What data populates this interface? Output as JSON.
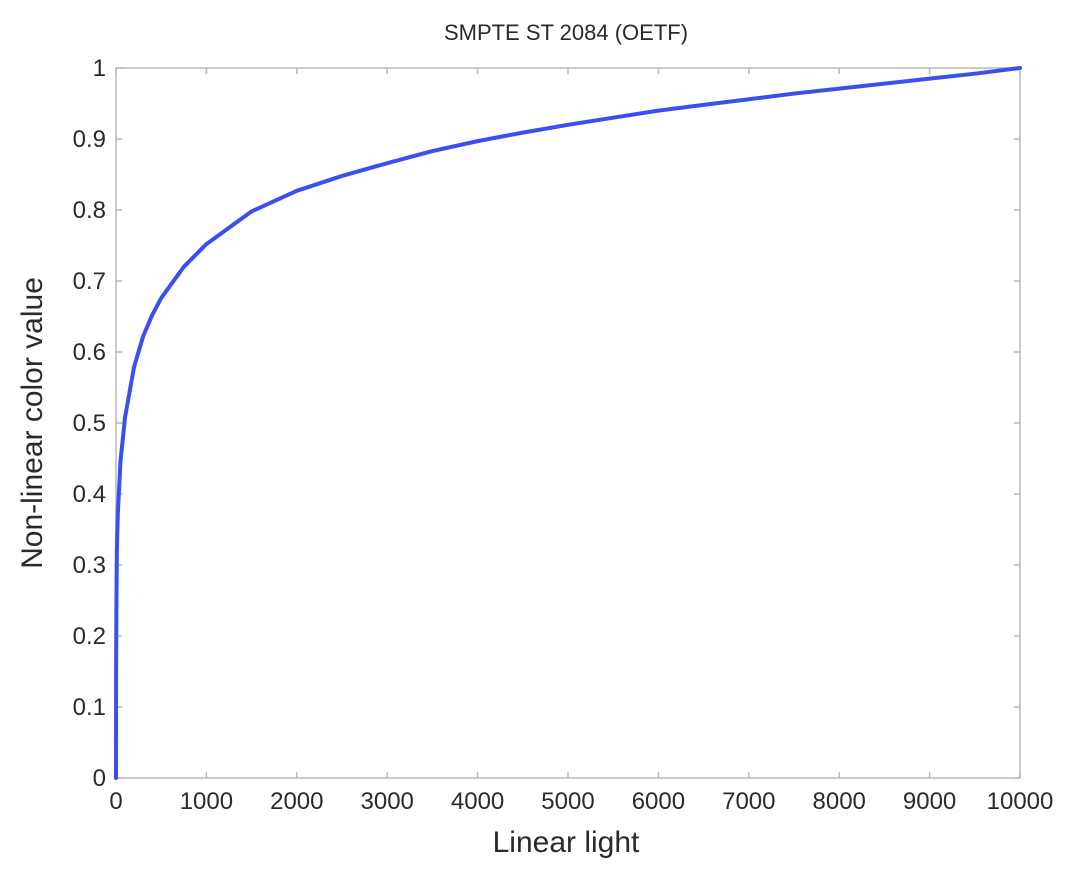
{
  "chart_data": {
    "type": "line",
    "title": "SMPTE ST 2084 (OETF)",
    "xlabel": "Linear light",
    "ylabel": "Non-linear color value",
    "xlim": [
      0,
      10000
    ],
    "ylim": [
      0,
      1
    ],
    "xticks": [
      0,
      1000,
      2000,
      3000,
      4000,
      5000,
      6000,
      7000,
      8000,
      9000,
      10000
    ],
    "xtick_labels": [
      "0",
      "1000",
      "2000",
      "3000",
      "4000",
      "5000",
      "6000",
      "7000",
      "8000",
      "9000",
      "10000"
    ],
    "yticks": [
      0,
      0.1,
      0.2,
      0.3,
      0.4,
      0.5,
      0.6,
      0.7,
      0.8,
      0.9,
      1
    ],
    "ytick_labels": [
      "0",
      "0.1",
      "0.2",
      "0.3",
      "0.4",
      "0.5",
      "0.6",
      "0.7",
      "0.8",
      "0.9",
      "1"
    ],
    "grid": false,
    "legend": "none",
    "colors": {
      "line": "#3a4ff0",
      "axis": "#b8b8b8",
      "text": "#2a2a2a"
    },
    "series": [
      {
        "x": [
          0,
          1,
          5,
          10,
          20,
          50,
          100,
          200,
          300,
          400,
          500,
          750,
          1000,
          1500,
          2000,
          2500,
          3000,
          3500,
          4000,
          4500,
          5000,
          5500,
          6000,
          6500,
          7000,
          7500,
          8000,
          8500,
          9000,
          9500,
          10000
        ],
        "y": [
          0,
          0.151,
          0.251,
          0.322,
          0.372,
          0.447,
          0.508,
          0.579,
          0.622,
          0.652,
          0.676,
          0.72,
          0.752,
          0.798,
          0.827,
          0.848,
          0.866,
          0.883,
          0.897,
          0.909,
          0.92,
          0.93,
          0.94,
          0.948,
          0.956,
          0.964,
          0.971,
          0.978,
          0.985,
          0.992,
          1.0
        ]
      }
    ]
  }
}
